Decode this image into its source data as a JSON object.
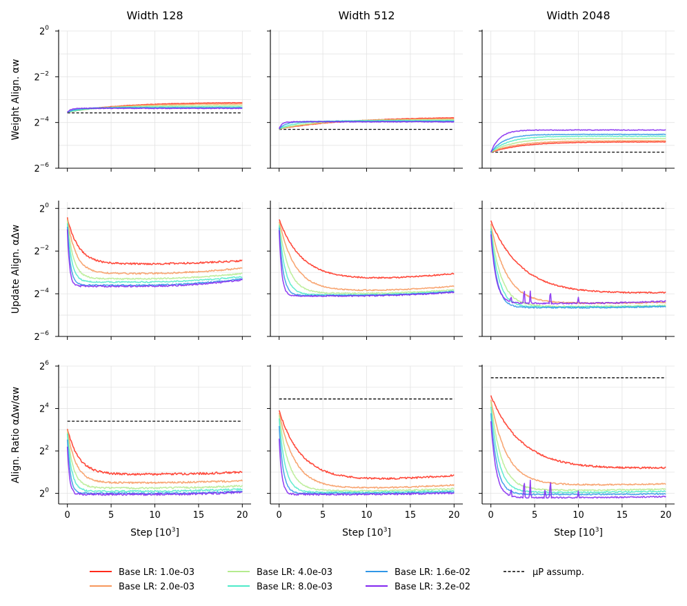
{
  "legend": {
    "entries": [
      {
        "label": "Base LR: 1.0e-03",
        "color": "#ff2a1a"
      },
      {
        "label": "Base LR: 2.0e-03",
        "color": "#f7965a"
      },
      {
        "label": "Base LR: 4.0e-03",
        "color": "#b4eb8e"
      },
      {
        "label": "Base LR: 8.0e-03",
        "color": "#4ceac8"
      },
      {
        "label": "Base LR: 1.6e-02",
        "color": "#2f96e6"
      },
      {
        "label": "Base LR: 3.2e-02",
        "color": "#8124f0"
      }
    ],
    "mup_label": "μP assump.",
    "mup_color": "#000000"
  },
  "x_axis": {
    "label_main": "Step [10",
    "label_sup": "3",
    "label_close": "]",
    "ticks": [
      0,
      5,
      10,
      15,
      20
    ],
    "tick_labels": [
      "0",
      "5",
      "10",
      "15",
      "20"
    ],
    "xlim": [
      -1,
      21
    ]
  },
  "chart_data": [
    {
      "type": "line",
      "row": 0,
      "col": 0,
      "title": "Width 128",
      "ylabel": "Weight Align. αw",
      "yscale": "log2",
      "ylim_exp": [
        -6,
        0
      ],
      "yticks_exp": [
        -6,
        -4,
        -2,
        0
      ],
      "mup": -3.58,
      "series": [
        {
          "name": "Base LR: 1.0e-03",
          "start": -3.55,
          "end": -3.12,
          "tau": 6,
          "noise": 0.01
        },
        {
          "name": "Base LR: 2.0e-03",
          "start": -3.55,
          "end": -3.18,
          "tau": 5,
          "noise": 0.01
        },
        {
          "name": "Base LR: 4.0e-03",
          "start": -3.55,
          "end": -3.26,
          "tau": 4,
          "noise": 0.01
        },
        {
          "name": "Base LR: 8.0e-03",
          "start": -3.55,
          "end": -3.32,
          "tau": 2.5,
          "noise": 0.01
        },
        {
          "name": "Base LR: 1.6e-02",
          "start": -3.55,
          "end": -3.36,
          "tau": 1.0,
          "noise": 0.012
        },
        {
          "name": "Base LR: 3.2e-02",
          "start": -3.55,
          "end": -3.38,
          "tau": 0.4,
          "noise": 0.015
        }
      ]
    },
    {
      "type": "line",
      "row": 0,
      "col": 1,
      "title": "Width 512",
      "ylabel": "",
      "yscale": "log2",
      "ylim_exp": [
        -6,
        0
      ],
      "yticks_exp": [
        -6,
        -4,
        -2,
        0
      ],
      "mup": -4.3,
      "series": [
        {
          "name": "Base LR: 1.0e-03",
          "start": -4.28,
          "end": -3.75,
          "tau": 8,
          "noise": 0.01
        },
        {
          "name": "Base LR: 2.0e-03",
          "start": -4.28,
          "end": -3.82,
          "tau": 6,
          "noise": 0.01
        },
        {
          "name": "Base LR: 4.0e-03",
          "start": -4.28,
          "end": -3.88,
          "tau": 4,
          "noise": 0.01
        },
        {
          "name": "Base LR: 8.0e-03",
          "start": -4.28,
          "end": -3.92,
          "tau": 2,
          "noise": 0.01
        },
        {
          "name": "Base LR: 1.6e-02",
          "start": -4.28,
          "end": -3.95,
          "tau": 0.8,
          "noise": 0.012
        },
        {
          "name": "Base LR: 3.2e-02",
          "start": -4.28,
          "end": -3.97,
          "tau": 0.3,
          "noise": 0.015
        }
      ]
    },
    {
      "type": "line",
      "row": 0,
      "col": 2,
      "title": "Width 2048",
      "ylabel": "",
      "yscale": "log2",
      "ylim_exp": [
        -6,
        0
      ],
      "yticks_exp": [
        -6,
        -4,
        -2,
        0
      ],
      "mup": -5.3,
      "series": [
        {
          "name": "Base LR: 1.0e-03",
          "start": -5.3,
          "end": -4.85,
          "tau": 3.5,
          "noise": 0.01
        },
        {
          "name": "Base LR: 2.0e-03",
          "start": -5.3,
          "end": -4.8,
          "tau": 3,
          "noise": 0.01
        },
        {
          "name": "Base LR: 4.0e-03",
          "start": -5.3,
          "end": -4.7,
          "tau": 2.5,
          "noise": 0.01
        },
        {
          "name": "Base LR: 8.0e-03",
          "start": -5.3,
          "end": -4.6,
          "tau": 2,
          "noise": 0.012
        },
        {
          "name": "Base LR: 1.6e-02",
          "start": -5.3,
          "end": -4.52,
          "tau": 1.5,
          "noise": 0.012
        },
        {
          "name": "Base LR: 3.2e-02",
          "start": -5.3,
          "end": -4.33,
          "tau": 1.0,
          "noise": 0.015
        }
      ]
    },
    {
      "type": "line",
      "row": 1,
      "col": 0,
      "title": "",
      "ylabel": "Update Align. αΔw",
      "yscale": "log2",
      "ylim_exp": [
        -6,
        0.3
      ],
      "yticks_exp": [
        -6,
        -4,
        -2,
        0
      ],
      "mup": 0,
      "series": [
        {
          "name": "Base LR: 1.0e-03",
          "start": -0.45,
          "min": -2.6,
          "tau": 1.3,
          "end": -2.45,
          "noise": 0.04
        },
        {
          "name": "Base LR: 2.0e-03",
          "start": -0.5,
          "min": -3.05,
          "tau": 1.0,
          "end": -2.8,
          "noise": 0.035
        },
        {
          "name": "Base LR: 4.0e-03",
          "start": -0.6,
          "min": -3.3,
          "tau": 0.7,
          "end": -3.05,
          "noise": 0.03
        },
        {
          "name": "Base LR: 8.0e-03",
          "start": -0.7,
          "min": -3.45,
          "tau": 0.5,
          "end": -3.2,
          "noise": 0.03
        },
        {
          "name": "Base LR: 1.6e-02",
          "start": -0.85,
          "min": -3.6,
          "tau": 0.35,
          "end": -3.3,
          "noise": 0.03
        },
        {
          "name": "Base LR: 3.2e-02",
          "start": -1.0,
          "min": -3.65,
          "tau": 0.25,
          "end": -3.35,
          "noise": 0.035
        }
      ]
    },
    {
      "type": "line",
      "row": 1,
      "col": 1,
      "title": "",
      "ylabel": "",
      "yscale": "log2",
      "ylim_exp": [
        -6,
        0.3
      ],
      "yticks_exp": [
        -6,
        -4,
        -2,
        0
      ],
      "mup": 0,
      "series": [
        {
          "name": "Base LR: 1.0e-03",
          "start": -0.5,
          "min": -3.3,
          "tau": 2.5,
          "end": -3.05,
          "noise": 0.03
        },
        {
          "name": "Base LR: 2.0e-03",
          "start": -0.6,
          "min": -3.85,
          "tau": 1.8,
          "end": -3.65,
          "noise": 0.025
        },
        {
          "name": "Base LR: 4.0e-03",
          "start": -0.7,
          "min": -3.98,
          "tau": 1.1,
          "end": -3.82,
          "noise": 0.025
        },
        {
          "name": "Base LR: 8.0e-03",
          "start": -0.8,
          "min": -4.05,
          "tau": 0.7,
          "end": -3.88,
          "noise": 0.025
        },
        {
          "name": "Base LR: 1.6e-02",
          "start": -0.9,
          "min": -4.08,
          "tau": 0.45,
          "end": -3.9,
          "noise": 0.025
        },
        {
          "name": "Base LR: 3.2e-02",
          "start": -1.0,
          "min": -4.1,
          "tau": 0.3,
          "end": -3.92,
          "noise": 0.03
        }
      ]
    },
    {
      "type": "line",
      "row": 1,
      "col": 2,
      "title": "",
      "ylabel": "",
      "yscale": "log2",
      "ylim_exp": [
        -6,
        0.3
      ],
      "yticks_exp": [
        -6,
        -4,
        -2,
        0
      ],
      "mup": 0,
      "series": [
        {
          "name": "Base LR: 1.0e-03",
          "start": -0.6,
          "min": -4.0,
          "tau": 3.5,
          "end": -3.95,
          "noise": 0.03
        },
        {
          "name": "Base LR: 2.0e-03",
          "start": -0.75,
          "min": -4.45,
          "tau": 1.8,
          "end": -4.4,
          "noise": 0.03
        },
        {
          "name": "Base LR: 4.0e-03",
          "start": -0.85,
          "min": -4.6,
          "tau": 1.2,
          "end": -4.55,
          "noise": 0.03
        },
        {
          "name": "Base LR: 8.0e-03",
          "start": -0.95,
          "min": -4.62,
          "tau": 0.9,
          "end": -4.58,
          "noise": 0.03
        },
        {
          "name": "Base LR: 1.6e-02",
          "start": -1.05,
          "min": -4.65,
          "tau": 0.7,
          "end": -4.6,
          "noise": 0.03
        },
        {
          "name": "Base LR: 3.2e-02",
          "start": -1.2,
          "min": -4.45,
          "tau": 0.6,
          "end": -4.35,
          "noise": 0.03,
          "spikes": [
            [
              2.3,
              0.3
            ],
            [
              3.8,
              0.8
            ],
            [
              4.5,
              0.6
            ],
            [
              6.8,
              0.7
            ],
            [
              10.0,
              0.3
            ]
          ]
        }
      ]
    },
    {
      "type": "line",
      "row": 2,
      "col": 0,
      "title": "",
      "ylabel": "Align. Ratio αΔw/αw",
      "yscale": "log2",
      "ylim_exp": [
        -0.5,
        6
      ],
      "yticks_exp": [
        0,
        2,
        4,
        6
      ],
      "mup": 3.4,
      "series": [
        {
          "name": "Base LR: 1.0e-03",
          "start": 3.05,
          "min": 0.9,
          "tau": 1.3,
          "end": 1.0,
          "noise": 0.05
        },
        {
          "name": "Base LR: 2.0e-03",
          "start": 3.0,
          "min": 0.5,
          "tau": 1.0,
          "end": 0.6,
          "noise": 0.04
        },
        {
          "name": "Base LR: 4.0e-03",
          "start": 2.9,
          "min": 0.25,
          "tau": 0.7,
          "end": 0.35,
          "noise": 0.04
        },
        {
          "name": "Base LR: 8.0e-03",
          "start": 2.8,
          "min": 0.1,
          "tau": 0.5,
          "end": 0.2,
          "noise": 0.04
        },
        {
          "name": "Base LR: 1.6e-02",
          "start": 2.5,
          "min": 0.0,
          "tau": 0.35,
          "end": 0.08,
          "noise": 0.04
        },
        {
          "name": "Base LR: 3.2e-02",
          "start": 2.2,
          "min": -0.05,
          "tau": 0.25,
          "end": 0.05,
          "noise": 0.05
        }
      ]
    },
    {
      "type": "line",
      "row": 2,
      "col": 1,
      "title": "",
      "ylabel": "",
      "yscale": "log2",
      "ylim_exp": [
        -0.5,
        6
      ],
      "yticks_exp": [
        0,
        2,
        4,
        6
      ],
      "mup": 4.45,
      "series": [
        {
          "name": "Base LR: 1.0e-03",
          "start": 3.9,
          "min": 0.65,
          "tau": 2.5,
          "end": 0.85,
          "noise": 0.04
        },
        {
          "name": "Base LR: 2.0e-03",
          "start": 3.8,
          "min": 0.25,
          "tau": 1.8,
          "end": 0.4,
          "noise": 0.03
        },
        {
          "name": "Base LR: 4.0e-03",
          "start": 3.7,
          "min": 0.12,
          "tau": 1.1,
          "end": 0.22,
          "noise": 0.03
        },
        {
          "name": "Base LR: 8.0e-03",
          "start": 3.5,
          "min": 0.05,
          "tau": 0.7,
          "end": 0.12,
          "noise": 0.03
        },
        {
          "name": "Base LR: 1.6e-02",
          "start": 3.2,
          "min": 0.0,
          "tau": 0.45,
          "end": 0.06,
          "noise": 0.03
        },
        {
          "name": "Base LR: 3.2e-02",
          "start": 2.6,
          "min": -0.05,
          "tau": 0.3,
          "end": 0.02,
          "noise": 0.04
        }
      ]
    },
    {
      "type": "line",
      "row": 2,
      "col": 2,
      "title": "",
      "ylabel": "",
      "yscale": "log2",
      "ylim_exp": [
        -0.5,
        6
      ],
      "yticks_exp": [
        0,
        2,
        4,
        6
      ],
      "mup": 5.45,
      "series": [
        {
          "name": "Base LR: 1.0e-03",
          "start": 4.6,
          "min": 1.15,
          "tau": 3.5,
          "end": 1.2,
          "noise": 0.04
        },
        {
          "name": "Base LR: 2.0e-03",
          "start": 4.4,
          "min": 0.4,
          "tau": 1.8,
          "end": 0.45,
          "noise": 0.03
        },
        {
          "name": "Base LR: 4.0e-03",
          "start": 4.3,
          "min": 0.15,
          "tau": 1.2,
          "end": 0.2,
          "noise": 0.03
        },
        {
          "name": "Base LR: 8.0e-03",
          "start": 4.1,
          "min": 0.05,
          "tau": 0.9,
          "end": 0.1,
          "noise": 0.03
        },
        {
          "name": "Base LR: 1.6e-02",
          "start": 3.8,
          "min": -0.05,
          "tau": 0.7,
          "end": -0.02,
          "noise": 0.03
        },
        {
          "name": "Base LR: 3.2e-02",
          "start": 3.4,
          "min": -0.2,
          "tau": 0.6,
          "end": -0.15,
          "noise": 0.03,
          "spikes": [
            [
              2.3,
              0.4
            ],
            [
              3.8,
              1.0
            ],
            [
              4.5,
              0.8
            ],
            [
              6.2,
              0.5
            ],
            [
              6.8,
              1.0
            ],
            [
              10.0,
              0.3
            ]
          ]
        }
      ]
    }
  ]
}
